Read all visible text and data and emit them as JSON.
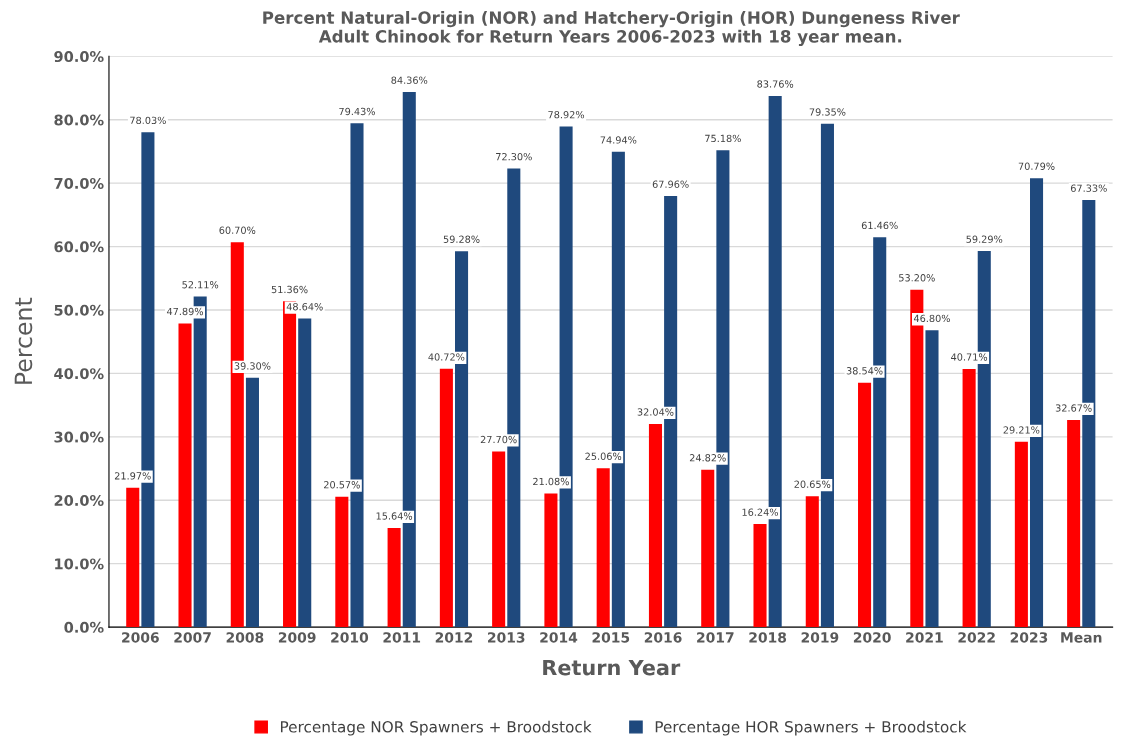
{
  "chart_data": {
    "type": "bar",
    "title": "Percent Natural-Origin (NOR) and Hatchery-Origin (HOR) Dungeness River\nAdult Chinook for Return Years 2006-2023 with 18 year mean.",
    "xlabel": "Return Year",
    "ylabel": "Percent",
    "categories": [
      "2006",
      "2007",
      "2008",
      "2009",
      "2010",
      "2011",
      "2012",
      "2013",
      "2014",
      "2015",
      "2016",
      "2017",
      "2018",
      "2019",
      "2020",
      "2021",
      "2022",
      "2023",
      "Mean"
    ],
    "series": [
      {
        "name": "Percentage NOR Spawners + Broodstock",
        "color": "#ff0000",
        "values": [
          21.97,
          47.89,
          60.7,
          51.36,
          20.57,
          15.64,
          40.72,
          27.7,
          21.08,
          25.06,
          32.04,
          24.82,
          16.24,
          20.65,
          38.54,
          53.2,
          40.71,
          29.21,
          32.67
        ],
        "value_labels": [
          "21.97%",
          "47.89%",
          "60.70%",
          "51.36%",
          "20.57%",
          "15.64%",
          "40.72%",
          "27.70%",
          "21.08%",
          "25.06%",
          "32.04%",
          "24.82%",
          "16.24%",
          "20.65%",
          "38.54%",
          "53.20%",
          "40.71%",
          "29.21%",
          "32.67%"
        ]
      },
      {
        "name": "Percentage HOR Spawners + Broodstock",
        "color": "#1f497d",
        "values": [
          78.03,
          52.11,
          39.3,
          48.64,
          79.43,
          84.36,
          59.28,
          72.3,
          78.92,
          74.94,
          67.96,
          75.18,
          83.76,
          79.35,
          61.46,
          46.8,
          59.29,
          70.79,
          67.33
        ],
        "value_labels": [
          "78.03%",
          "52.11%",
          "39.30%",
          "48.64%",
          "79.43%",
          "84.36%",
          "59.28%",
          "72.30%",
          "78.92%",
          "74.94%",
          "67.96%",
          "75.18%",
          "83.76%",
          "79.35%",
          "61.46%",
          "46.80%",
          "59.29%",
          "70.79%",
          "67.33%"
        ]
      }
    ],
    "ylim": [
      0,
      90
    ],
    "yticks": [
      {
        "value": 0,
        "label": "0.0%"
      },
      {
        "value": 10,
        "label": "10.0%"
      },
      {
        "value": 20,
        "label": "20.0%"
      },
      {
        "value": 30,
        "label": "30.0%"
      },
      {
        "value": 40,
        "label": "40.0%"
      },
      {
        "value": 50,
        "label": "50.0%"
      },
      {
        "value": 60,
        "label": "60.0%"
      },
      {
        "value": 70,
        "label": "70.0%"
      },
      {
        "value": 80,
        "label": "80.0%"
      },
      {
        "value": 90,
        "label": "90.0%"
      }
    ],
    "grid": "y",
    "legend": "bottom"
  }
}
